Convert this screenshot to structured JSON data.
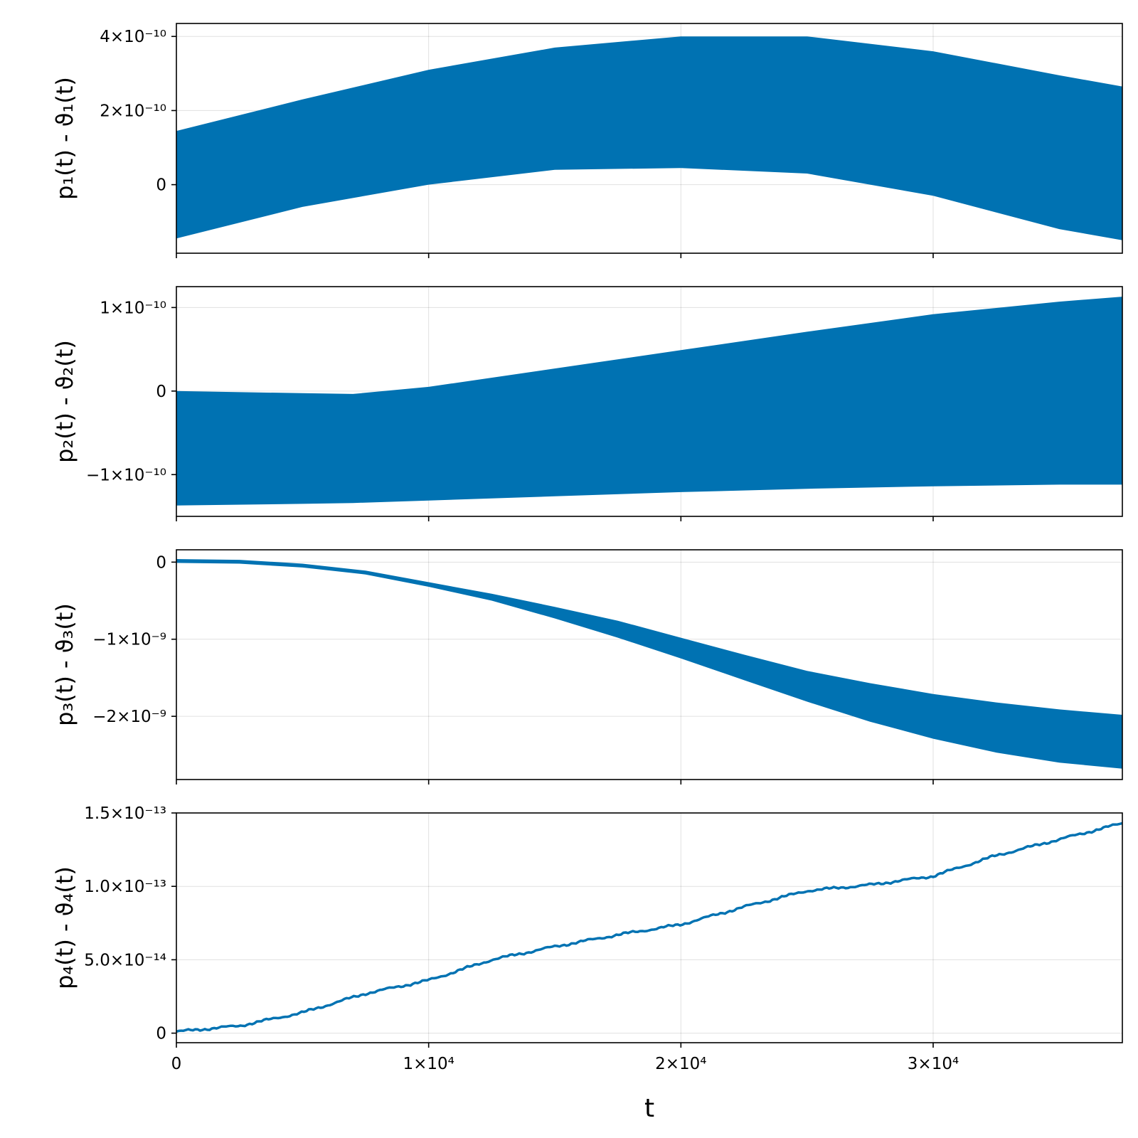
{
  "chart_data": {
    "type": "area",
    "xlabel": "t",
    "xlim": [
      0,
      37500
    ],
    "x_ticks": [
      {
        "value": 0,
        "label": "0"
      },
      {
        "value": 10000,
        "label": "1×10⁴"
      },
      {
        "value": 20000,
        "label": "2×10⁴"
      },
      {
        "value": 30000,
        "label": "3×10⁴"
      }
    ],
    "grid": true,
    "color": "#0072b2",
    "panels": [
      {
        "ylabel": "p₁(t) - ϑ₁(t)",
        "render": "band",
        "ylim": [
          -1.85e-10,
          4.35e-10
        ],
        "y_ticks": [
          {
            "value": 0,
            "label": "0"
          },
          {
            "value": 2e-10,
            "label": "2×10⁻¹⁰"
          },
          {
            "value": 4e-10,
            "label": "4×10⁻¹⁰"
          }
        ],
        "x": [
          0,
          5000,
          10000,
          15000,
          20000,
          25000,
          30000,
          35000,
          37500
        ],
        "upper": [
          1.45e-10,
          2.3e-10,
          3.1e-10,
          3.7e-10,
          4e-10,
          4e-10,
          3.6e-10,
          2.95e-10,
          2.65e-10
        ],
        "lower": [
          -1.45e-10,
          -6e-11,
          0,
          4e-11,
          4.5e-11,
          3e-11,
          -3e-11,
          -1.2e-10,
          -1.5e-10
        ]
      },
      {
        "ylabel": "p₂(t) - ϑ₂(t)",
        "render": "band",
        "ylim": [
          -1.5e-10,
          1.25e-10
        ],
        "y_ticks": [
          {
            "value": -1e-10,
            "label": "−1×10⁻¹⁰"
          },
          {
            "value": 0,
            "label": "0"
          },
          {
            "value": 1e-10,
            "label": "1×10⁻¹⁰"
          }
        ],
        "x": [
          0,
          5000,
          7000,
          10000,
          15000,
          20000,
          25000,
          30000,
          35000,
          37500
        ],
        "upper": [
          0,
          -2.5e-12,
          -3.5e-12,
          5e-12,
          2.7e-11,
          4.9e-11,
          7.1e-11,
          9.2e-11,
          1.07e-10,
          1.13e-10
        ],
        "lower": [
          -1.37e-10,
          -1.35e-10,
          -1.34e-10,
          -1.31e-10,
          -1.26e-10,
          -1.21e-10,
          -1.17e-10,
          -1.14e-10,
          -1.12e-10,
          -1.12e-10
        ]
      },
      {
        "ylabel": "p₃(t) - ϑ₃(t)",
        "render": "band",
        "ylim": [
          -2.82e-09,
          1.6e-10
        ],
        "y_ticks": [
          {
            "value": -2e-09,
            "label": "−2×10⁻⁹"
          },
          {
            "value": -1e-09,
            "label": "−1×10⁻⁹"
          },
          {
            "value": 0,
            "label": "0"
          }
        ],
        "x": [
          0,
          2500,
          5000,
          7500,
          10000,
          12500,
          15000,
          17500,
          20000,
          22500,
          25000,
          27500,
          30000,
          32500,
          35000,
          37500
        ],
        "upper": [
          4e-11,
          3e-11,
          -2e-11,
          -1.1e-10,
          -2.6e-10,
          -4.1e-10,
          -5.8e-10,
          -7.6e-10,
          -9.8e-10,
          -1.2e-09,
          -1.41e-09,
          -1.57e-09,
          -1.71e-09,
          -1.82e-09,
          -1.91e-09,
          -1.98e-09
        ],
        "lower": [
          -1e-11,
          -2e-11,
          -7e-11,
          -1.6e-10,
          -3.2e-10,
          -5e-10,
          -7.3e-10,
          -9.8e-10,
          -1.25e-09,
          -1.53e-09,
          -1.81e-09,
          -2.07e-09,
          -2.29e-09,
          -2.47e-09,
          -2.6e-09,
          -2.68e-09
        ]
      },
      {
        "ylabel": "p₄(t) - ϑ₄(t)",
        "render": "line",
        "ylim": [
          -6.5e-15,
          1.5e-13
        ],
        "y_ticks": [
          {
            "value": 0,
            "label": "0"
          },
          {
            "value": 5e-14,
            "label": "5.0×10⁻¹⁴"
          },
          {
            "value": 1e-13,
            "label": "1.0×10⁻¹³"
          },
          {
            "value": 1.5e-13,
            "label": "1.5×10⁻¹³"
          }
        ],
        "x": [
          0,
          2500,
          5000,
          7500,
          10000,
          12500,
          15000,
          17500,
          20000,
          22500,
          25000,
          27500,
          30000,
          32500,
          35000,
          37500
        ],
        "y": [
          1e-15,
          5e-15,
          1.4e-14,
          2.7e-14,
          3.6e-14,
          5e-14,
          5.9e-14,
          6.7e-14,
          7.4e-14,
          8.6e-14,
          9.7e-14,
          1.01e-13,
          1.07e-13,
          1.21e-13,
          1.32e-13,
          1.43e-13
        ]
      }
    ]
  }
}
